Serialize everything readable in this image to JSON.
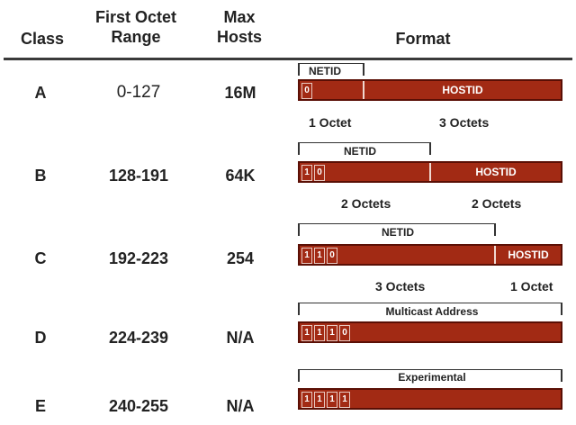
{
  "headers": {
    "class": "Class",
    "range_line1": "First Octet",
    "range_line2": "Range",
    "hosts_line1": "Max",
    "hosts_line2": "Hosts",
    "format": "Format"
  },
  "colors": {
    "bar_fill": "#a22a14",
    "bar_border": "#5a0f05",
    "rule": "#3a3a3a"
  },
  "rows": [
    {
      "class": "A",
      "range": "0-127",
      "hosts": "16M",
      "bits": [
        "0"
      ],
      "bracket_label": "NETID",
      "bar_label": "HOSTID",
      "octets_left": "1 Octet",
      "octets_right": "3 Octets"
    },
    {
      "class": "B",
      "range": "128-191",
      "hosts": "64K",
      "bits": [
        "1",
        "0"
      ],
      "bracket_label": "NETID",
      "bar_label": "HOSTID",
      "octets_left": "2 Octets",
      "octets_right": "2 Octets"
    },
    {
      "class": "C",
      "range": "192-223",
      "hosts": "254",
      "bits": [
        "1",
        "1",
        "0"
      ],
      "bracket_label": "NETID",
      "bar_label": "HOSTID",
      "octets_left": "3 Octets",
      "octets_right": "1 Octet"
    },
    {
      "class": "D",
      "range": "224-239",
      "hosts": "N/A",
      "bits": [
        "1",
        "1",
        "1",
        "0"
      ],
      "bracket_label": "Multicast Address"
    },
    {
      "class": "E",
      "range": "240-255",
      "hosts": "N/A",
      "bits": [
        "1",
        "1",
        "1",
        "1"
      ],
      "bracket_label": "Experimental"
    }
  ]
}
